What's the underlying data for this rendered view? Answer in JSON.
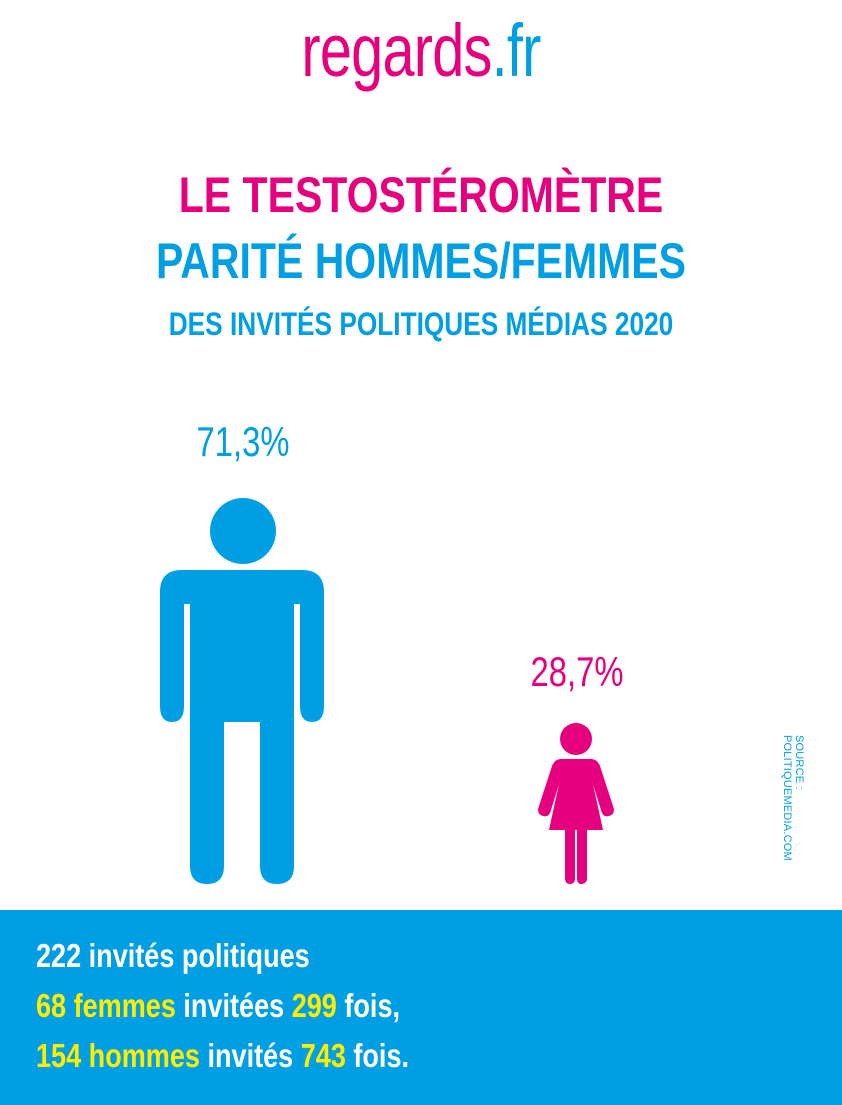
{
  "logo": {
    "name": "regards",
    "dot": ".",
    "tld": "fr"
  },
  "titles": {
    "line1": "LE TESTOSTÉROMÈTRE",
    "line2": "PARITÉ HOMMES/FEMMES",
    "line3": "DES INVITÉS POLITIQUES MÉDIAS 2020"
  },
  "men": {
    "percent_label": "71,3%",
    "percent": 71.3,
    "color": "#009fe3",
    "icon": "man-icon"
  },
  "women": {
    "percent_label": "28,7%",
    "percent": 28.7,
    "color": "#e6007e",
    "icon": "woman-icon"
  },
  "source": "SOURCE : POLITIQUEMEDIA.COM",
  "summary": {
    "line1": "222 invités politiques",
    "line2": {
      "count": "68 femmes",
      "text": " invitées ",
      "times": "299",
      "suffix": " fois,"
    },
    "line3": {
      "count": "154 hommes",
      "text": " invités ",
      "times": "743",
      "suffix": " fois."
    }
  },
  "colors": {
    "pink": "#e6007e",
    "blue": "#009fe3",
    "yellow": "#ffed00"
  }
}
